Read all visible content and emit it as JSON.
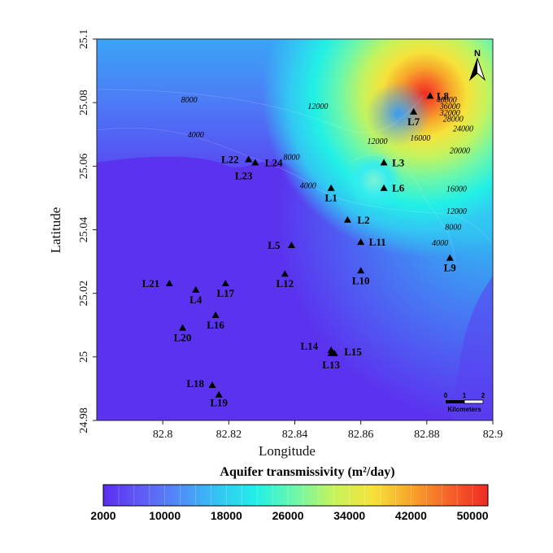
{
  "chart_data": {
    "type": "heatmap",
    "title": "",
    "xlabel": "Longitude",
    "ylabel": "Latitude",
    "xlim": [
      82.78,
      82.9
    ],
    "ylim": [
      24.98,
      25.1
    ],
    "x_ticks": [
      {
        "value": 82.8,
        "label": "82.8"
      },
      {
        "value": 82.82,
        "label": "82.82"
      },
      {
        "value": 82.84,
        "label": "82.84"
      },
      {
        "value": 82.86,
        "label": "82.86"
      },
      {
        "value": 82.88,
        "label": "82.88"
      },
      {
        "value": 82.9,
        "label": "82.9"
      }
    ],
    "y_ticks": [
      {
        "value": 24.98,
        "label": "24.98"
      },
      {
        "value": 25.0,
        "label": "25"
      },
      {
        "value": 25.02,
        "label": "25.02"
      },
      {
        "value": 25.04,
        "label": "25.04"
      },
      {
        "value": 25.06,
        "label": "25.06"
      },
      {
        "value": 25.08,
        "label": "25.08"
      },
      {
        "value": 25.1,
        "label": "25.1"
      }
    ],
    "colorbar": {
      "title": "Aquifer transmissivity (m²/day)",
      "min": 2000,
      "max": 52000,
      "tick_labels": [
        {
          "value": 2000,
          "label": "2000"
        },
        {
          "value": 10000,
          "label": "10000"
        },
        {
          "value": 18000,
          "label": "18000"
        },
        {
          "value": 26000,
          "label": "26000"
        },
        {
          "value": 34000,
          "label": "34000"
        },
        {
          "value": 42000,
          "label": "42000"
        },
        {
          "value": 50000,
          "label": "50000"
        }
      ],
      "colors": [
        "#5b2cf0",
        "#5f5cf6",
        "#4f8ef8",
        "#33c6f3",
        "#22f0e6",
        "#6ff7a8",
        "#c6f35c",
        "#f6e23a",
        "#f7a52a",
        "#f6622a",
        "#ee2a22"
      ]
    },
    "wells": [
      {
        "name": "L1",
        "lon": 82.851,
        "lat": 25.053
      },
      {
        "name": "L2",
        "lon": 82.856,
        "lat": 25.043
      },
      {
        "name": "L3",
        "lon": 82.867,
        "lat": 25.061
      },
      {
        "name": "L4",
        "lon": 82.81,
        "lat": 25.021
      },
      {
        "name": "L5",
        "lon": 82.839,
        "lat": 25.035
      },
      {
        "name": "L6",
        "lon": 82.867,
        "lat": 25.053
      },
      {
        "name": "L7",
        "lon": 82.876,
        "lat": 25.077
      },
      {
        "name": "L8",
        "lon": 82.881,
        "lat": 25.082
      },
      {
        "name": "L9",
        "lon": 82.887,
        "lat": 25.031
      },
      {
        "name": "L10",
        "lon": 82.86,
        "lat": 25.027
      },
      {
        "name": "L11",
        "lon": 82.86,
        "lat": 25.036
      },
      {
        "name": "L12",
        "lon": 82.837,
        "lat": 25.026
      },
      {
        "name": "L13",
        "lon": 82.851,
        "lat": 25.001
      },
      {
        "name": "L14",
        "lon": 82.851,
        "lat": 25.002
      },
      {
        "name": "L15",
        "lon": 82.852,
        "lat": 25.001
      },
      {
        "name": "L16",
        "lon": 82.816,
        "lat": 25.013
      },
      {
        "name": "L17",
        "lon": 82.819,
        "lat": 25.023
      },
      {
        "name": "L18",
        "lon": 82.815,
        "lat": 24.991
      },
      {
        "name": "L19",
        "lon": 82.817,
        "lat": 24.988
      },
      {
        "name": "L20",
        "lon": 82.806,
        "lat": 25.009
      },
      {
        "name": "L21",
        "lon": 82.802,
        "lat": 25.023
      },
      {
        "name": "L22",
        "lon": 82.826,
        "lat": 25.062
      },
      {
        "name": "L23",
        "lon": 82.826,
        "lat": 25.062
      },
      {
        "name": "L24",
        "lon": 82.828,
        "lat": 25.061
      }
    ],
    "contour_labels": [
      {
        "text": "8000",
        "lon": 82.808,
        "lat": 25.08
      },
      {
        "text": "4000",
        "lon": 82.81,
        "lat": 25.069
      },
      {
        "text": "8000",
        "lon": 82.839,
        "lat": 25.062
      },
      {
        "text": "4000",
        "lon": 82.844,
        "lat": 25.053
      },
      {
        "text": "12000",
        "lon": 82.847,
        "lat": 25.078
      },
      {
        "text": "12000",
        "lon": 82.865,
        "lat": 25.067
      },
      {
        "text": "16000",
        "lon": 82.878,
        "lat": 25.068
      },
      {
        "text": "20000",
        "lon": 82.89,
        "lat": 25.064
      },
      {
        "text": "24000",
        "lon": 82.891,
        "lat": 25.071
      },
      {
        "text": "16000",
        "lon": 82.889,
        "lat": 25.052
      },
      {
        "text": "12000",
        "lon": 82.889,
        "lat": 25.045
      },
      {
        "text": "8000",
        "lon": 82.888,
        "lat": 25.04
      },
      {
        "text": "4000",
        "lon": 82.884,
        "lat": 25.035
      },
      {
        "text": "40000",
        "lon": 82.886,
        "lat": 25.08
      },
      {
        "text": "36000",
        "lon": 82.887,
        "lat": 25.078
      },
      {
        "text": "32000",
        "lon": 82.887,
        "lat": 25.076
      },
      {
        "text": "28000",
        "lon": 82.888,
        "lat": 25.074
      }
    ],
    "north_arrow_label": "N",
    "scale_bar": {
      "ticks": [
        "0",
        "1",
        "2"
      ],
      "unit": "Kilometers"
    }
  }
}
